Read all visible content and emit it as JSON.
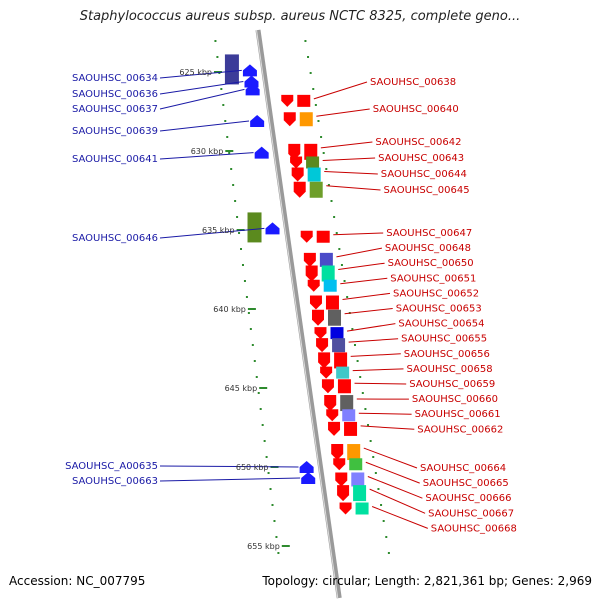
{
  "title": "Staphylococcus aureus subsp. aureus NCTC 8325, complete geno...",
  "footer": {
    "accession": "Accession: NC_007795",
    "topology": "Topology: circular; Length: 2,821,361 bp; Genes: 2,969"
  },
  "colors": {
    "axis": "#999999",
    "left_label": "#1a1aa6",
    "right_label": "#c80000",
    "ticks": "#2e8b2e"
  },
  "kbp_ticks": [
    {
      "label": "625 kbp",
      "value": 625
    },
    {
      "label": "630 kbp",
      "value": 630
    },
    {
      "label": "635 kbp",
      "value": 635
    },
    {
      "label": "640 kbp",
      "value": 640
    },
    {
      "label": "645 kbp",
      "value": 645
    },
    {
      "label": "650 kbp",
      "value": 650
    },
    {
      "label": "655 kbp",
      "value": 655
    }
  ],
  "left_genes": [
    {
      "label": "SAOUHSC_00634",
      "strand": "+",
      "color": "#2020e0",
      "pos": 624.9
    },
    {
      "label": "SAOUHSC_00636",
      "strand": "+",
      "color": "#2020e0",
      "pos": 625.6
    },
    {
      "label": "SAOUHSC_00637",
      "strand": "+",
      "color": "#2020e0",
      "pos": 626.1
    },
    {
      "label": "SAOUHSC_00639",
      "strand": "+",
      "color": "#2020e0",
      "pos": 628.1
    },
    {
      "label": "SAOUHSC_00641",
      "strand": "+",
      "color": "#2020e0",
      "pos": 630.1
    },
    {
      "label": "SAOUHSC_00646",
      "strand": "+",
      "color": "#2020e0",
      "pos": 634.9
    },
    {
      "label": "SAOUHSC_A00635",
      "strand": "+",
      "color": "#2020e0",
      "pos": 650.0
    },
    {
      "label": "SAOUHSC_00663",
      "strand": "+",
      "color": "#2020e0",
      "pos": 650.7
    }
  ],
  "right_genes": [
    {
      "label": "SAOUHSC_00638",
      "pos": 626.7
    },
    {
      "label": "SAOUHSC_00640",
      "pos": 627.8
    },
    {
      "label": "SAOUHSC_00642",
      "pos": 629.8
    },
    {
      "label": "SAOUHSC_00643",
      "pos": 630.6
    },
    {
      "label": "SAOUHSC_00644",
      "pos": 631.3
    },
    {
      "label": "SAOUHSC_00645",
      "pos": 632.2
    },
    {
      "label": "SAOUHSC_00647",
      "pos": 635.3
    },
    {
      "label": "SAOUHSC_00648",
      "pos": 636.7
    },
    {
      "label": "SAOUHSC_00650",
      "pos": 637.5
    },
    {
      "label": "SAOUHSC_00651",
      "pos": 638.4
    },
    {
      "label": "SAOUHSC_00652",
      "pos": 639.4
    },
    {
      "label": "SAOUHSC_00653",
      "pos": 640.3
    },
    {
      "label": "SAOUHSC_00654",
      "pos": 641.4
    },
    {
      "label": "SAOUHSC_00655",
      "pos": 642.1
    },
    {
      "label": "SAOUHSC_00656",
      "pos": 643.0
    },
    {
      "label": "SAOUHSC_00658",
      "pos": 643.9
    },
    {
      "label": "SAOUHSC_00659",
      "pos": 644.7
    },
    {
      "label": "SAOUHSC_00660",
      "pos": 645.7
    },
    {
      "label": "SAOUHSC_00661",
      "pos": 646.6
    },
    {
      "label": "SAOUHSC_00662",
      "pos": 647.4
    },
    {
      "label": "SAOUHSC_00664",
      "pos": 648.8
    },
    {
      "label": "SAOUHSC_00665",
      "pos": 649.7
    },
    {
      "label": "SAOUHSC_00666",
      "pos": 650.6
    },
    {
      "label": "SAOUHSC_00667",
      "pos": 651.4
    },
    {
      "label": "SAOUHSC_00668",
      "pos": 652.5
    }
  ]
}
